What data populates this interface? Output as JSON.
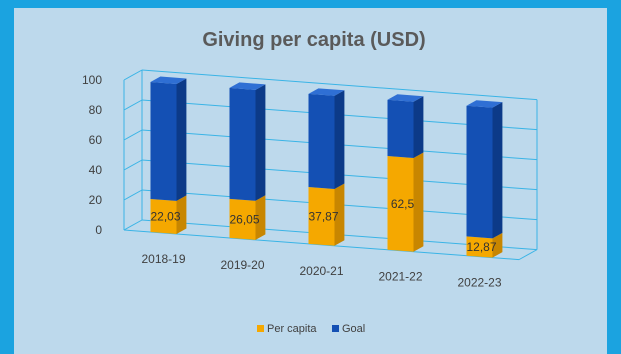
{
  "chart_data": {
    "type": "bar",
    "stacked": true,
    "three_d": true,
    "title": "Giving per capita (USD)",
    "categories": [
      "2018-19",
      "2019-20",
      "2020-21",
      "2021-22",
      "2022-23"
    ],
    "series": [
      {
        "name": "Per capita",
        "color": "#f5a800",
        "values": [
          22.03,
          26.05,
          37.87,
          62.5,
          12.87
        ],
        "labels": [
          "22,03",
          "26,05",
          "37,87",
          "62,5",
          "12,87"
        ]
      },
      {
        "name": "Goal",
        "color": "#1450b4",
        "values": [
          77.97,
          73.95,
          62.13,
          37.5,
          87.13
        ]
      }
    ],
    "ylim": [
      0,
      100
    ],
    "yticks": [
      "0",
      "20",
      "40",
      "60",
      "80",
      "100"
    ],
    "grid": true,
    "legend": "bottom"
  }
}
